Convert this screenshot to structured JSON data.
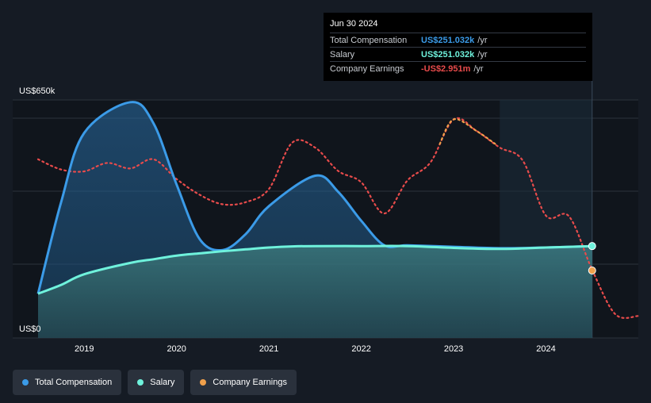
{
  "tooltip": {
    "date": "Jun 30 2024",
    "rows": [
      {
        "label": "Total Compensation",
        "value": "US$251.032k",
        "unit": "/yr",
        "color": "#3b9be8"
      },
      {
        "label": "Salary",
        "value": "US$251.032k",
        "unit": "/yr",
        "color": "#6ff2dc"
      },
      {
        "label": "Company Earnings",
        "value": "-US$2.951m",
        "unit": "/yr",
        "color": "#e84b4b"
      }
    ]
  },
  "legend": [
    {
      "label": "Total Compensation",
      "color": "#3b9be8"
    },
    {
      "label": "Salary",
      "color": "#6ff2dc"
    },
    {
      "label": "Company Earnings",
      "color": "#f0a04b"
    }
  ],
  "chart_data": {
    "type": "area",
    "y_top_label": "US$650k",
    "y_bottom_label": "US$0",
    "ylim": [
      0,
      650
    ],
    "xlim": [
      2018.5,
      2025.0
    ],
    "x_ticks": [
      {
        "value": 2019,
        "label": "2019"
      },
      {
        "value": 2020,
        "label": "2020"
      },
      {
        "value": 2021,
        "label": "2021"
      },
      {
        "value": 2022,
        "label": "2022"
      },
      {
        "value": 2023,
        "label": "2023"
      },
      {
        "value": 2024,
        "label": "2024"
      }
    ],
    "highlight_start": 2023.5,
    "highlight_end": 2024.5,
    "series": [
      {
        "name": "Total Compensation",
        "color": "#3b9be8",
        "points": [
          [
            2018.5,
            121
          ],
          [
            2018.75,
            371
          ],
          [
            2019.0,
            560
          ],
          [
            2019.5,
            644
          ],
          [
            2019.75,
            586
          ],
          [
            2020.0,
            419
          ],
          [
            2020.25,
            270
          ],
          [
            2020.5,
            240
          ],
          [
            2020.75,
            284
          ],
          [
            2021.0,
            360
          ],
          [
            2021.5,
            443
          ],
          [
            2021.75,
            399
          ],
          [
            2022.0,
            320
          ],
          [
            2022.25,
            253
          ],
          [
            2022.5,
            253
          ],
          [
            2023.0,
            249
          ],
          [
            2023.5,
            245
          ],
          [
            2024.0,
            247
          ],
          [
            2024.5,
            251
          ]
        ]
      },
      {
        "name": "Salary",
        "color": "#6ff2dc",
        "points": [
          [
            2018.5,
            121
          ],
          [
            2018.75,
            145
          ],
          [
            2019.0,
            174
          ],
          [
            2019.5,
            205
          ],
          [
            2019.75,
            215
          ],
          [
            2020.0,
            225
          ],
          [
            2020.25,
            231
          ],
          [
            2020.5,
            237
          ],
          [
            2020.75,
            242
          ],
          [
            2021.0,
            247
          ],
          [
            2021.25,
            250
          ],
          [
            2021.5,
            251
          ],
          [
            2022.0,
            251
          ],
          [
            2022.5,
            251
          ],
          [
            2023.0,
            246
          ],
          [
            2023.5,
            243
          ],
          [
            2024.0,
            247
          ],
          [
            2024.5,
            251
          ]
        ]
      },
      {
        "name": "Company Earnings",
        "color": "#e84b4b",
        "color_highlight": "#f0a04b",
        "points": [
          [
            2018.5,
            488
          ],
          [
            2018.75,
            460
          ],
          [
            2019.0,
            455
          ],
          [
            2019.25,
            478
          ],
          [
            2019.5,
            463
          ],
          [
            2019.75,
            488
          ],
          [
            2020.0,
            434
          ],
          [
            2020.25,
            391
          ],
          [
            2020.5,
            365
          ],
          [
            2020.75,
            371
          ],
          [
            2021.0,
            407
          ],
          [
            2021.25,
            533
          ],
          [
            2021.5,
            520
          ],
          [
            2021.75,
            456
          ],
          [
            2022.0,
            425
          ],
          [
            2022.25,
            340
          ],
          [
            2022.5,
            430
          ],
          [
            2022.75,
            480
          ],
          [
            2023.0,
            597
          ],
          [
            2023.25,
            565
          ],
          [
            2023.5,
            520
          ],
          [
            2023.75,
            484
          ],
          [
            2024.0,
            334
          ],
          [
            2024.25,
            332
          ],
          [
            2024.5,
            186
          ],
          [
            2024.75,
            65
          ],
          [
            2025.0,
            60
          ]
        ],
        "highlight_points": [
          [
            2022.85,
            530
          ],
          [
            2023.0,
            597
          ],
          [
            2023.25,
            565
          ],
          [
            2023.45,
            530
          ]
        ]
      }
    ]
  }
}
